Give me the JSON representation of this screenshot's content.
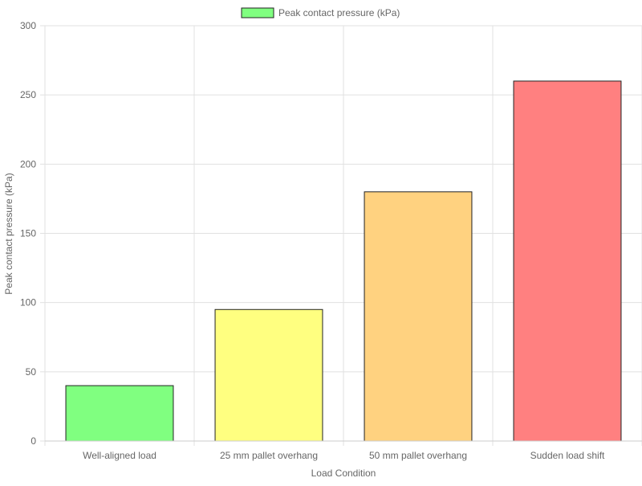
{
  "chart_data": {
    "type": "bar",
    "categories": [
      "Well-aligned load",
      "25 mm pallet overhang",
      "50 mm pallet overhang",
      "Sudden load shift"
    ],
    "series": [
      {
        "name": "Peak contact pressure (kPa)",
        "values": [
          40,
          95,
          180,
          260
        ]
      }
    ],
    "bar_colors": [
      "#80ff80",
      "#ffff80",
      "#ffd280",
      "#ff8080"
    ],
    "legend_color": "#80ff80",
    "bar_border_color": "#222222",
    "xlabel": "Load Condition",
    "ylabel": "Peak contact pressure (kPa)",
    "ylim": [
      0,
      300
    ],
    "yticks": [
      "0",
      "50",
      "100",
      "150",
      "200",
      "250",
      "300"
    ],
    "grid": true,
    "legend_position": "top"
  }
}
